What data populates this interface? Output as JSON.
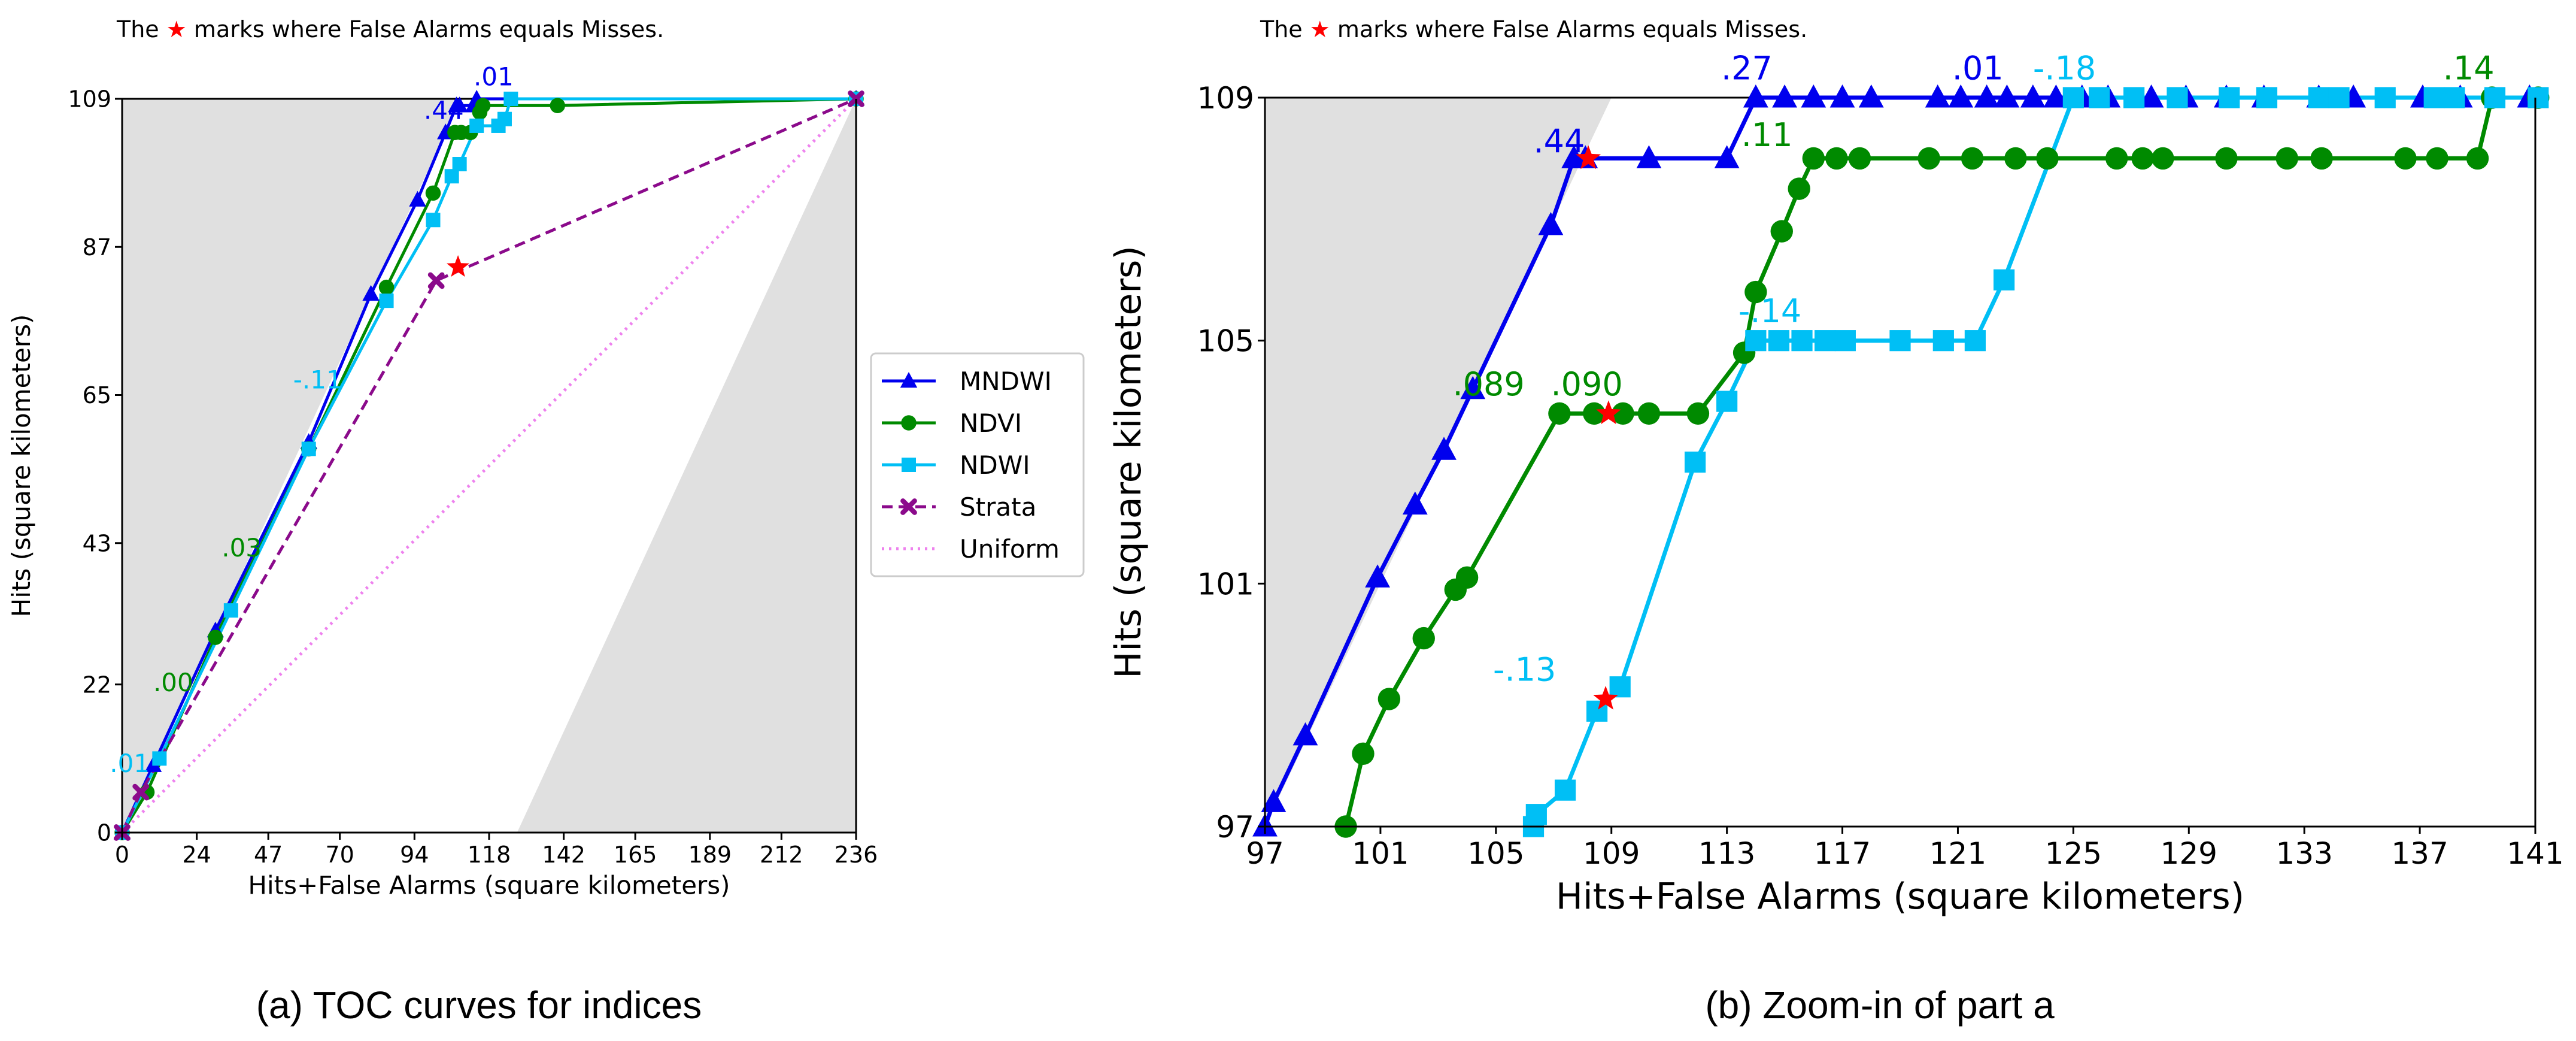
{
  "colors": {
    "MNDWI": "#0000ee",
    "NDVI": "#008a00",
    "NDWI": "#00bff5",
    "Strata": "#8b0a8b",
    "Uniform": "#ee82ee",
    "star": "#ff0000",
    "shade": "#e0e0e0"
  },
  "legend": {
    "entries": [
      {
        "name": "MNDWI",
        "marker": "triangle",
        "style": "solid"
      },
      {
        "name": "NDVI",
        "marker": "circle",
        "style": "solid"
      },
      {
        "name": "NDWI",
        "marker": "square",
        "style": "solid"
      },
      {
        "name": "Strata",
        "marker": "x",
        "style": "dashed"
      },
      {
        "name": "Uniform",
        "marker": "none",
        "style": "dotted"
      }
    ]
  },
  "chart_data": [
    {
      "type": "line",
      "note": {
        "before": "The",
        "symbol": "★",
        "after": "marks where False Alarms equals Misses."
      },
      "caption": "(a) TOC curves for indices",
      "xlabel": "Hits+False Alarms (square kilometers)",
      "ylabel": "Hits (square kilometers)",
      "xlim": [
        0,
        236
      ],
      "ylim": [
        0,
        109
      ],
      "xticks": [
        0,
        24,
        47,
        70,
        94,
        118,
        142,
        165,
        189,
        212,
        236
      ],
      "yticks": [
        0,
        22,
        43,
        65,
        87,
        109
      ],
      "series": [
        {
          "name": "MNDWI",
          "x": [
            0,
            10,
            30,
            60,
            80,
            95,
            104,
            107.5,
            108.5,
            113,
            114,
            236
          ],
          "y": [
            0,
            10,
            30,
            58,
            80,
            94,
            104,
            108,
            108,
            108,
            109,
            109
          ]
        },
        {
          "name": "NDVI",
          "x": [
            0,
            8,
            30,
            60,
            85,
            100,
            107,
            109,
            112,
            115,
            116,
            140,
            236
          ],
          "y": [
            0,
            6,
            29,
            57,
            81,
            95,
            104,
            104,
            104,
            107,
            108,
            108,
            109
          ]
        },
        {
          "name": "NDWI",
          "x": [
            0,
            12,
            35,
            60,
            85,
            100,
            106,
            108.5,
            114,
            121,
            123,
            125,
            236
          ],
          "y": [
            0,
            11,
            33,
            57,
            79,
            91,
            97.5,
            99.3,
            105,
            105,
            106,
            109,
            109
          ]
        },
        {
          "name": "Strata",
          "x": [
            0,
            6,
            101,
            236
          ],
          "y": [
            0,
            6,
            82,
            109
          ]
        },
        {
          "name": "Uniform",
          "x": [
            0,
            236
          ],
          "y": [
            0,
            109
          ]
        }
      ],
      "stars": [
        {
          "x": 108,
          "y": 84
        }
      ],
      "annotations": [
        {
          "text": ".01",
          "x": 113,
          "y": 111,
          "series": "MNDWI"
        },
        {
          "text": ".44",
          "x": 97,
          "y": 106,
          "series": "MNDWI"
        },
        {
          "text": "-.11",
          "x": 55,
          "y": 66,
          "series": "NDWI"
        },
        {
          "text": ".03",
          "x": 32,
          "y": 41,
          "series": "NDVI"
        },
        {
          "text": ".00",
          "x": 10,
          "y": 21,
          "series": "NDVI"
        },
        {
          "text": ".01",
          "x": -4,
          "y": 9,
          "series": "NDWI"
        }
      ]
    },
    {
      "type": "line",
      "note": {
        "before": "The",
        "symbol": "★",
        "after": "marks where False Alarms equals Misses."
      },
      "caption": "(b) Zoom-in of part a",
      "xlabel": "Hits+False Alarms (square kilometers)",
      "ylabel": "Hits (square kilometers)",
      "xlim": [
        97,
        141
      ],
      "ylim": [
        97,
        109
      ],
      "xticks": [
        97,
        101,
        105,
        109,
        113,
        117,
        121,
        125,
        129,
        133,
        137,
        141
      ],
      "yticks": [
        97,
        101,
        105,
        109
      ],
      "series": [
        {
          "name": "MNDWI",
          "x": [
            97,
            97.3,
            98.4,
            100.9,
            102.2,
            103.2,
            104.2,
            106.9,
            107.7,
            108.1,
            110.3,
            113,
            114,
            115,
            116,
            117,
            118,
            120.3,
            121.1,
            122,
            122.7,
            123.6,
            124.4,
            125.3,
            126.2,
            127.7,
            128.9,
            130.3,
            131.6,
            133.5,
            134.7,
            137.1,
            138.4,
            140.8
          ],
          "y": [
            97,
            97.4,
            98.5,
            101.1,
            102.3,
            103.2,
            104.2,
            106.9,
            108,
            108,
            108,
            108,
            109,
            109,
            109,
            109,
            109,
            109,
            109,
            109,
            109,
            109,
            109,
            109,
            109,
            109,
            109,
            109,
            109,
            109,
            109,
            109,
            109,
            109
          ]
        },
        {
          "name": "NDVI",
          "x": [
            99.8,
            100.4,
            101.3,
            102.5,
            103.6,
            104,
            107.2,
            108.4,
            109.4,
            110.3,
            112,
            113.6,
            114,
            114.9,
            115.5,
            116,
            116.8,
            117.6,
            120,
            121.5,
            123,
            124.1,
            126.5,
            127.4,
            128.1,
            130.3,
            132.4,
            133.6,
            136.5,
            137.6,
            139,
            139.5,
            141.1
          ],
          "y": [
            97,
            98.2,
            99.1,
            100.1,
            100.9,
            101.1,
            103.8,
            103.8,
            103.8,
            103.8,
            103.8,
            104.8,
            105.8,
            106.8,
            107.5,
            108,
            108,
            108,
            108,
            108,
            108,
            108,
            108,
            108,
            108,
            108,
            108,
            108,
            108,
            108,
            108,
            109,
            109
          ]
        },
        {
          "name": "NDWI",
          "x": [
            106.3,
            106.4,
            107.4,
            108.5,
            109.3,
            111.9,
            113,
            114,
            114.8,
            115.6,
            116.4,
            117.1,
            119,
            120.5,
            121.6,
            122.6,
            125,
            125.9,
            127.1,
            128.6,
            130.4,
            131.7,
            133.5,
            134.2,
            135.8,
            137.5,
            138.2,
            139.6,
            141.1
          ],
          "y": [
            97,
            97.2,
            97.6,
            98.9,
            99.3,
            103,
            104,
            105,
            105,
            105,
            105,
            105,
            105,
            105,
            105,
            106,
            109,
            109,
            109,
            109,
            109,
            109,
            109,
            109,
            109,
            109,
            109,
            109,
            109
          ]
        }
      ],
      "stars": [
        {
          "x": 108.2,
          "y": 108
        },
        {
          "x": 108.9,
          "y": 103.8
        },
        {
          "x": 108.8,
          "y": 99.1
        }
      ],
      "annotations": [
        {
          "text": ".44",
          "x": 106.3,
          "y": 108.1,
          "series": "MNDWI"
        },
        {
          "text": ".27",
          "x": 112.8,
          "y": 109.3,
          "series": "MNDWI"
        },
        {
          "text": ".01",
          "x": 120.8,
          "y": 109.3,
          "series": "MNDWI"
        },
        {
          "text": "-.18",
          "x": 123.6,
          "y": 109.3,
          "series": "NDWI"
        },
        {
          "text": ".14",
          "x": 137.8,
          "y": 109.3,
          "series": "NDVI"
        },
        {
          "text": ".11",
          "x": 113.5,
          "y": 108.2,
          "series": "NDVI"
        },
        {
          "text": ".089",
          "x": 103.5,
          "y": 104.1,
          "series": "NDVI"
        },
        {
          "text": ".090",
          "x": 106.9,
          "y": 104.1,
          "series": "NDVI"
        },
        {
          "text": "-.14",
          "x": 113.4,
          "y": 105.3,
          "series": "NDWI"
        },
        {
          "text": "-.13",
          "x": 104.9,
          "y": 99.4,
          "series": "NDWI"
        }
      ]
    }
  ]
}
